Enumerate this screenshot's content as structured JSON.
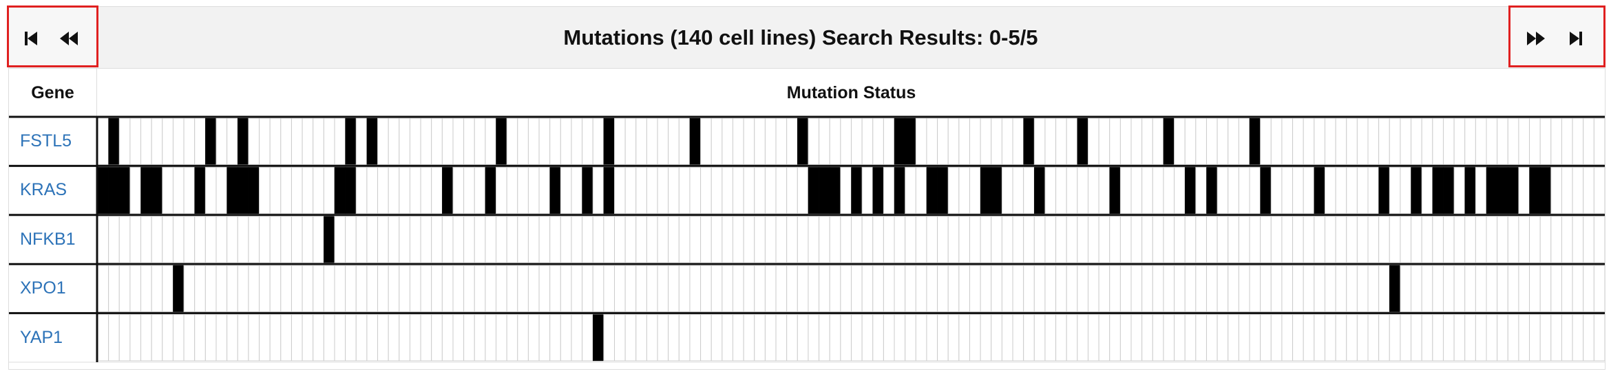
{
  "header": {
    "title": "Mutations (140 cell lines) Search Results: 0-5/5",
    "nav_left": [
      {
        "name": "first-page-button",
        "icon": "skip-to-start-icon"
      },
      {
        "name": "previous-page-button",
        "icon": "fast-backward-icon"
      }
    ],
    "nav_right": [
      {
        "name": "next-page-button",
        "icon": "fast-forward-icon"
      },
      {
        "name": "last-page-button",
        "icon": "skip-to-end-icon"
      }
    ]
  },
  "table": {
    "col_gene": "Gene",
    "col_status": "Mutation Status",
    "cell_line_count": 140,
    "mutated_color": "#000000",
    "unmutated_color": "#ffffff",
    "cell_border_color": "#cccccc",
    "link_color": "#2d73b8",
    "rows": [
      {
        "gene": "FSTL5",
        "mutated": [
          1,
          10,
          13,
          23,
          25,
          37,
          47,
          55,
          65,
          74,
          75,
          86,
          91,
          99,
          107
        ]
      },
      {
        "gene": "KRAS",
        "mutated": [
          0,
          1,
          2,
          4,
          5,
          9,
          12,
          13,
          14,
          22,
          23,
          32,
          36,
          42,
          45,
          47,
          66,
          67,
          68,
          70,
          72,
          74,
          77,
          78,
          82,
          83,
          87,
          94,
          101,
          103,
          108,
          113,
          119,
          122,
          124,
          125,
          127,
          129,
          130,
          131,
          133,
          134
        ]
      },
      {
        "gene": "NFKB1",
        "mutated": [
          21
        ]
      },
      {
        "gene": "XPO1",
        "mutated": [
          7,
          120
        ]
      },
      {
        "gene": "YAP1",
        "mutated": [
          46
        ]
      }
    ]
  }
}
